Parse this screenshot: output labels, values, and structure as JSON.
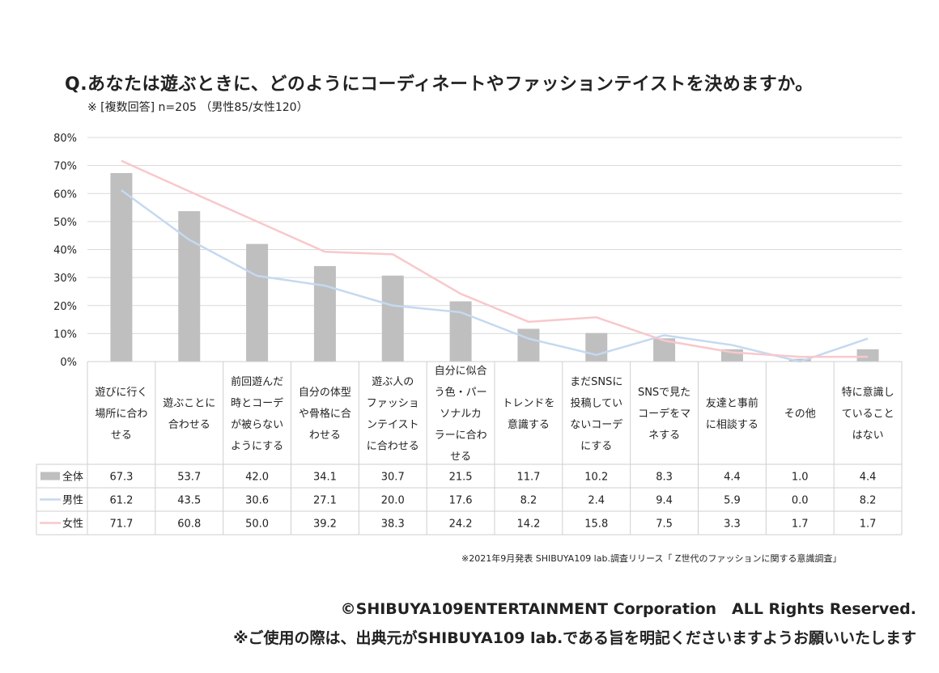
{
  "title": "Q.あなたは遊ぶときに、どのようにコーディネートやファッションテイストを決めますか。",
  "subtitle": "※ [複数回答] n=205 （男性85/女性120）",
  "source": "※2021年9月発表 SHIBUYA109 lab.調査リリース「 Z世代のファッションに関する意識調査」",
  "copyright": "©SHIBUYA109ENTERTAINMENT Corporation　ALL Rights Reserved.",
  "usage_note": "※ご使用の際は、出典元がSHIBUYA109 lab.である旨を明記くださいますようお願いいたします",
  "colors": {
    "all": "#bfbfbf",
    "male": "#c5d9f1",
    "female": "#f8c8cc",
    "grid": "#d9d9d9"
  },
  "chart_data": {
    "type": "bar",
    "ylim": [
      0,
      80
    ],
    "yticks": [
      "0%",
      "10%",
      "20%",
      "30%",
      "40%",
      "50%",
      "60%",
      "70%",
      "80%"
    ],
    "grid": true,
    "legend": "data-table",
    "categories": [
      [
        "遊びに行く",
        "場所に合わ",
        "せる"
      ],
      [
        "遊ぶことに",
        "合わせる"
      ],
      [
        "前回遊んだ",
        "時とコーデ",
        "が被らない",
        "ようにする"
      ],
      [
        "自分の体型",
        "や骨格に合",
        "わせる"
      ],
      [
        "遊ぶ人の",
        "ファッショ",
        "ンテイスト",
        "に合わせる"
      ],
      [
        "自分に似合",
        "う色・パー",
        "ソナルカ",
        "ラーに合わ",
        "せる"
      ],
      [
        "トレンドを",
        "意識する"
      ],
      [
        "まだSNSに",
        "投稿してい",
        "ないコーデ",
        "にする"
      ],
      [
        "SNSで見た",
        "コーデをマ",
        "ネする"
      ],
      [
        "友達と事前",
        "に相談する"
      ],
      [
        "その他"
      ],
      [
        "特に意識し",
        "ていること",
        "はない"
      ]
    ],
    "series": [
      {
        "name": "全体",
        "kind": "bar",
        "values": [
          67.3,
          53.7,
          42.0,
          34.1,
          30.7,
          21.5,
          11.7,
          10.2,
          8.3,
          4.4,
          1.0,
          4.4
        ],
        "labels": [
          "67.3",
          "53.7",
          "42.0",
          "34.1",
          "30.7",
          "21.5",
          "11.7",
          "10.2",
          "8.3",
          "4.4",
          "1.0",
          "4.4"
        ]
      },
      {
        "name": "男性",
        "kind": "line",
        "values": [
          61.2,
          43.5,
          30.6,
          27.1,
          20.0,
          17.6,
          8.2,
          2.4,
          9.4,
          5.9,
          0.0,
          8.2
        ],
        "labels": [
          "61.2",
          "43.5",
          "30.6",
          "27.1",
          "20.0",
          "17.6",
          "8.2",
          "2.4",
          "9.4",
          "5.9",
          "0.0",
          "8.2"
        ]
      },
      {
        "name": "女性",
        "kind": "line",
        "values": [
          71.7,
          60.8,
          50.0,
          39.2,
          38.3,
          24.2,
          14.2,
          15.8,
          7.5,
          3.3,
          1.7,
          1.7
        ],
        "labels": [
          "71.7",
          "60.8",
          "50.0",
          "39.2",
          "38.3",
          "24.2",
          "14.2",
          "15.8",
          "7.5",
          "3.3",
          "1.7",
          "1.7"
        ]
      }
    ]
  }
}
